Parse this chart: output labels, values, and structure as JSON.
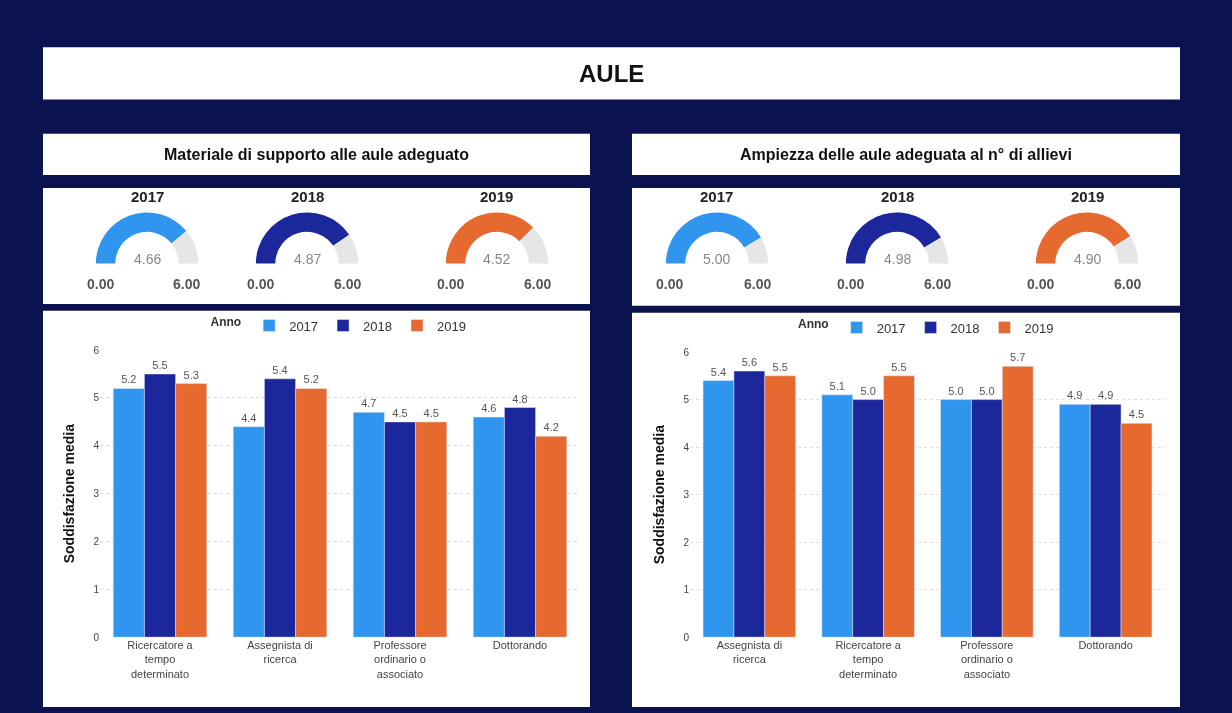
{
  "chart_data": [
    {
      "type": "other",
      "title": "AULE"
    },
    {
      "type": "other",
      "title": "Materiale di supporto alle aule adeguato"
    },
    {
      "type": "donut",
      "title": "2017",
      "categories": [
        null,
        null
      ],
      "values": [
        78,
        22
      ],
      "colors": [
        "#2f95ee",
        "#e6e6e6"
      ],
      "annotations": [
        "4.66",
        "0.00",
        "6.00"
      ]
    },
    {
      "type": "donut",
      "title": "2018",
      "categories": [
        null,
        null
      ],
      "values": [
        81,
        19
      ],
      "colors": [
        "#1b279a",
        "#e6e6e6"
      ],
      "annotations": [
        "4.87",
        "0.00",
        "6.00"
      ]
    },
    {
      "type": "donut",
      "title": "2019",
      "categories": [
        null,
        null
      ],
      "values": [
        75,
        25
      ],
      "colors": [
        "#e6692f",
        "#e6e6e6"
      ],
      "annotations": [
        "4.52",
        "0.00",
        "6.00"
      ]
    },
    {
      "type": "bar",
      "ylabel": "Soddisfazione media",
      "legend_title": "Anno",
      "legend": "top",
      "grid": "y",
      "ylim": [
        0,
        6
      ],
      "yticks": [
        0,
        1,
        2,
        3,
        4,
        5,
        6
      ],
      "categories": [
        "Ricercatore a tempo determinato",
        "Assegnista di ricerca",
        "Professore ordinario o associato",
        "Dottorando"
      ],
      "series": [
        {
          "name": "2017",
          "color": "#2f95ee",
          "values": [
            5.2,
            4.4,
            4.7,
            4.6
          ],
          "value_labels": [
            "5.2",
            "4.4",
            "4.7",
            "4.6"
          ]
        },
        {
          "name": "2018",
          "color": "#1b279a",
          "values": [
            5.5,
            5.4,
            4.5,
            4.8
          ],
          "value_labels": [
            "5.5",
            "5.4",
            "4.5",
            "4.8"
          ]
        },
        {
          "name": "2019",
          "color": "#e6692f",
          "values": [
            5.3,
            5.2,
            4.5,
            4.2
          ],
          "value_labels": [
            "5.3",
            "5.2",
            "4.5",
            "4.2"
          ]
        }
      ]
    },
    {
      "type": "other",
      "title": "Ampiezza delle aule adeguata al n° di allievi"
    },
    {
      "type": "donut",
      "title": "2017",
      "categories": [
        null,
        null
      ],
      "values": [
        83,
        17
      ],
      "colors": [
        "#2f95ee",
        "#e6e6e6"
      ],
      "annotations": [
        "5.00",
        "0.00",
        "6.00"
      ]
    },
    {
      "type": "donut",
      "title": "2018",
      "categories": [
        null,
        null
      ],
      "values": [
        83,
        17
      ],
      "colors": [
        "#1b279a",
        "#e6e6e6"
      ],
      "annotations": [
        "4.98",
        "0.00",
        "6.00"
      ]
    },
    {
      "type": "donut",
      "title": "2019",
      "categories": [
        null,
        null
      ],
      "values": [
        82,
        18
      ],
      "colors": [
        "#e6692f",
        "#e6e6e6"
      ],
      "annotations": [
        "4.90",
        "0.00",
        "6.00"
      ]
    },
    {
      "type": "bar",
      "ylabel": "Soddisfazione media",
      "legend_title": "Anno",
      "legend": "top",
      "grid": "y",
      "ylim": [
        0,
        6
      ],
      "yticks": [
        0,
        1,
        2,
        3,
        4,
        5,
        6
      ],
      "categories": [
        "Assegnista di ricerca",
        "Ricercatore a tempo determinato",
        "Professore ordinario o associato",
        "Dottorando"
      ],
      "series": [
        {
          "name": "2017",
          "color": "#2f95ee",
          "values": [
            5.4,
            5.1,
            5.0,
            4.9
          ],
          "value_labels": [
            "5.4",
            "5.1",
            "5.0",
            "4.9"
          ]
        },
        {
          "name": "2018",
          "color": "#1b279a",
          "values": [
            5.6,
            5.0,
            5.0,
            4.9
          ],
          "value_labels": [
            "5.6",
            "5.0",
            "5.0",
            "4.9"
          ]
        },
        {
          "name": "2019",
          "color": "#e6692f",
          "values": [
            5.5,
            5.5,
            5.7,
            4.5
          ],
          "value_labels": [
            "5.5",
            "5.5",
            "5.7",
            "4.5"
          ]
        }
      ]
    }
  ]
}
